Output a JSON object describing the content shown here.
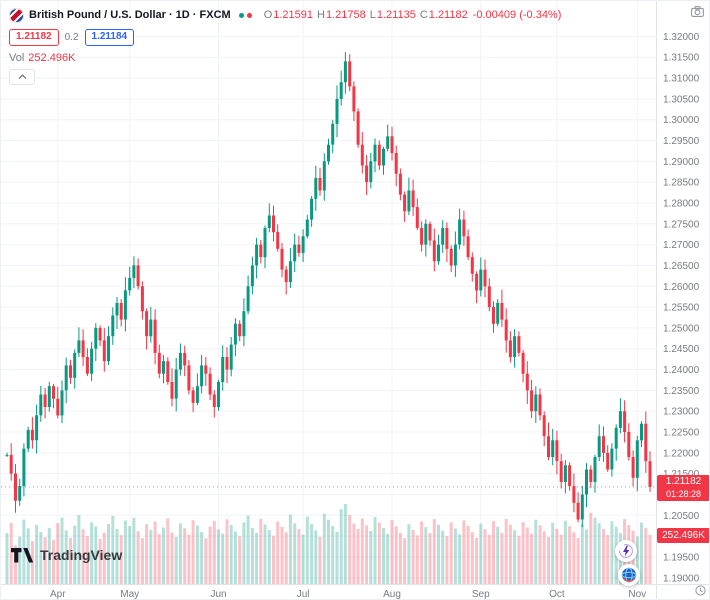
{
  "header": {
    "symbol_title": "British Pound / U.S. Dollar · 1D · FXCM",
    "ohlc": {
      "o_label": "O",
      "o_value": "1.21591",
      "h_label": "H",
      "h_value": "1.21758",
      "l_label": "L",
      "l_value": "1.21135",
      "c_label": "C",
      "c_value": "1.21182",
      "change": "-0.00409 (-0.34%)"
    },
    "sell_price": "1.21182",
    "spread": "0.2",
    "buy_price": "1.21184",
    "volume_label": "Vol",
    "volume_value": "252.496K"
  },
  "badges": {
    "last_price": "1.21182",
    "countdown": "01:28:28",
    "volume": "252.496K"
  },
  "footer": {
    "brand": "TradingView"
  },
  "colors": {
    "up": "#089981",
    "down": "#F23645",
    "volume_up": "rgba(8,153,129,0.30)",
    "volume_down": "rgba(242,54,69,0.30)",
    "accent_blue": "#2962FF",
    "axis_text": "#787B86",
    "badge_red": "#F23645",
    "grid": "#f0f3fa",
    "axis_line": "#e0e3eb"
  },
  "chart_data": {
    "type": "candlestick",
    "title": "British Pound / U.S. Dollar",
    "symbol": "GBP/USD",
    "timeframe": "1D",
    "exchange": "FXCM",
    "ohlc_last": {
      "open": 1.21591,
      "high": 1.21758,
      "low": 1.21135,
      "close": 1.21182,
      "change": -0.00409,
      "change_pct": -0.34
    },
    "last_price": 1.21182,
    "last_volume_k": 252.496,
    "y_axis": {
      "range": [
        1.1885,
        1.3285
      ],
      "ticks": [
        "1.32000",
        "1.31500",
        "1.31000",
        "1.30500",
        "1.30000",
        "1.29500",
        "1.29000",
        "1.28500",
        "1.28000",
        "1.27500",
        "1.27000",
        "1.26500",
        "1.26000",
        "1.25500",
        "1.25000",
        "1.24500",
        "1.24000",
        "1.23500",
        "1.23000",
        "1.22500",
        "1.22000",
        "1.21500",
        "1.21000",
        "1.20500",
        "1.20000",
        "1.19500",
        "1.19000"
      ]
    },
    "x_axis": {
      "months": [
        {
          "label": "Apr",
          "index": 12
        },
        {
          "label": "May",
          "index": 29
        },
        {
          "label": "Jun",
          "index": 50
        },
        {
          "label": "Jul",
          "index": 70
        },
        {
          "label": "Aug",
          "index": 91
        },
        {
          "label": "Sep",
          "index": 112
        },
        {
          "label": "Oct",
          "index": 130
        },
        {
          "label": "Nov",
          "index": 149
        }
      ]
    },
    "closes": [
      1.2195,
      1.215,
      1.2085,
      1.212,
      1.221,
      1.2255,
      1.223,
      1.229,
      1.234,
      1.231,
      1.236,
      1.233,
      1.229,
      1.235,
      1.241,
      1.238,
      1.244,
      1.247,
      1.243,
      1.239,
      1.245,
      1.25,
      1.247,
      1.242,
      1.248,
      1.253,
      1.256,
      1.252,
      1.259,
      1.262,
      1.265,
      1.26,
      1.254,
      1.248,
      1.252,
      1.244,
      1.239,
      1.242,
      1.237,
      1.233,
      1.24,
      1.244,
      1.241,
      1.235,
      1.232,
      1.236,
      1.241,
      1.239,
      1.234,
      1.231,
      1.237,
      1.243,
      1.24,
      1.246,
      1.251,
      1.248,
      1.254,
      1.26,
      1.265,
      1.27,
      1.267,
      1.274,
      1.277,
      1.273,
      1.269,
      1.264,
      1.261,
      1.266,
      1.27,
      1.268,
      1.272,
      1.276,
      1.281,
      1.286,
      1.283,
      1.29,
      1.294,
      1.299,
      1.305,
      1.309,
      1.314,
      1.308,
      1.302,
      1.294,
      1.289,
      1.285,
      1.29,
      1.294,
      1.289,
      1.293,
      1.296,
      1.292,
      1.287,
      1.282,
      1.278,
      1.283,
      1.279,
      1.274,
      1.27,
      1.275,
      1.271,
      1.266,
      1.27,
      1.274,
      1.269,
      1.265,
      1.27,
      1.276,
      1.272,
      1.267,
      1.263,
      1.259,
      1.264,
      1.26,
      1.255,
      1.251,
      1.256,
      1.252,
      1.247,
      1.243,
      1.248,
      1.244,
      1.239,
      1.235,
      1.23,
      1.234,
      1.229,
      1.224,
      1.219,
      1.223,
      1.218,
      1.213,
      1.217,
      1.212,
      1.208,
      1.204,
      1.21,
      1.216,
      1.213,
      1.219,
      1.224,
      1.22,
      1.216,
      1.221,
      1.226,
      1.23,
      1.225,
      1.219,
      1.214,
      1.223,
      1.227,
      1.218,
      1.21182
    ],
    "volumes_k": [
      262,
      315,
      198,
      244,
      332,
      287,
      221,
      305,
      268,
      241,
      289,
      226,
      314,
      342,
      276,
      238,
      301,
      355,
      282,
      247,
      318,
      296,
      233,
      264,
      309,
      351,
      284,
      252,
      327,
      298,
      341,
      272,
      236,
      308,
      279,
      322,
      257,
      291,
      338,
      265,
      243,
      312,
      287,
      254,
      329,
      301,
      268,
      235,
      296,
      324,
      281,
      259,
      333,
      304,
      271,
      246,
      318,
      352,
      289,
      263,
      336,
      307,
      278,
      249,
      321,
      294,
      266,
      358,
      312,
      283,
      255,
      347,
      309,
      276,
      244,
      362,
      331,
      298,
      269,
      385,
      412,
      356,
      311,
      284,
      337,
      302,
      273,
      345,
      316,
      288,
      258,
      329,
      297,
      264,
      236,
      308,
      279,
      251,
      322,
      293,
      262,
      334,
      305,
      274,
      246,
      317,
      286,
      256,
      328,
      299,
      267,
      238,
      311,
      282,
      253,
      324,
      295,
      263,
      335,
      306,
      277,
      248,
      319,
      291,
      259,
      331,
      303,
      272,
      243,
      315,
      285,
      254,
      326,
      297,
      266,
      237,
      309,
      281,
      366,
      342,
      313,
      284,
      252,
      323,
      295,
      262,
      334,
      303,
      274,
      245,
      316,
      288,
      252.496
    ]
  }
}
